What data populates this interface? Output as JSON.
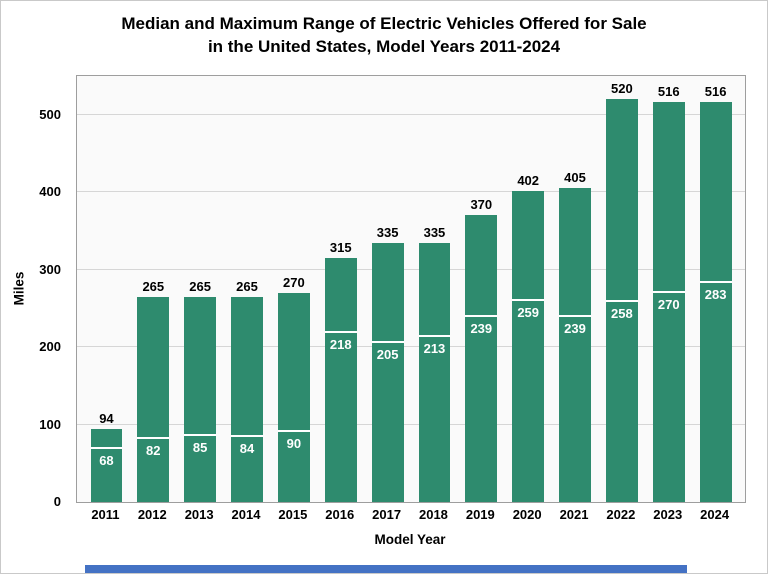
{
  "title": {
    "line1": "Median and Maximum Range of Electric Vehicles Offered for Sale",
    "line2": "in the United States, Model Years 2011-2024"
  },
  "colors": {
    "bar": "#2e8b6e",
    "median_marker": "#ffffff",
    "max_label": "#000000",
    "median_label": "#ffffff",
    "gridline": "#d6d6d6",
    "plot_border": "#9e9e9e",
    "footer_bar": "#4472c4"
  },
  "chart_data": {
    "type": "bar",
    "categories": [
      "2011",
      "2012",
      "2013",
      "2014",
      "2015",
      "2016",
      "2017",
      "2018",
      "2019",
      "2020",
      "2021",
      "2022",
      "2023",
      "2024"
    ],
    "series": [
      {
        "name": "Maximum Range",
        "values": [
          94,
          265,
          265,
          265,
          270,
          315,
          335,
          335,
          370,
          402,
          405,
          520,
          516,
          516
        ]
      },
      {
        "name": "Median Range",
        "values": [
          68,
          82,
          85,
          84,
          90,
          218,
          205,
          213,
          239,
          259,
          239,
          258,
          270,
          283
        ]
      }
    ],
    "title": "Median and Maximum Range of Electric Vehicles Offered for Sale in the United States, Model Years 2011-2024",
    "xlabel": "Model Year",
    "ylabel": "Miles",
    "ylim": [
      0,
      550
    ],
    "yticks": [
      0,
      100,
      200,
      300,
      400,
      500
    ],
    "grid": true,
    "legend": "none"
  }
}
